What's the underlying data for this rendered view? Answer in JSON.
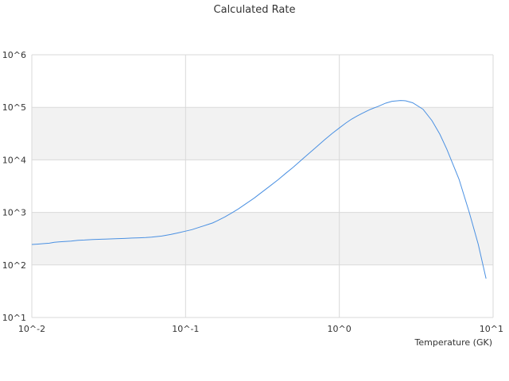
{
  "chart_data": {
    "type": "line",
    "title": "Calculated Rate",
    "xlabel": "Temperature (GK)",
    "ylabel": "",
    "x_scale": "log",
    "y_scale": "log",
    "xlim": [
      0.01,
      10
    ],
    "ylim": [
      10,
      1000000
    ],
    "x_ticks": [
      {
        "value": 0.01,
        "label": "10^-2"
      },
      {
        "value": 0.1,
        "label": "10^-1"
      },
      {
        "value": 1,
        "label": "10^0"
      },
      {
        "value": 10,
        "label": "10^1"
      }
    ],
    "y_ticks": [
      {
        "value": 10,
        "label": "10^1"
      },
      {
        "value": 100,
        "label": "10^2"
      },
      {
        "value": 1000,
        "label": "10^3"
      },
      {
        "value": 10000,
        "label": "10^4"
      },
      {
        "value": 100000,
        "label": "10^5"
      },
      {
        "value": 1000000,
        "label": "10^6"
      }
    ],
    "grid": true,
    "band_color": "#f2f2f2",
    "gridline_color": "#d9d9d9",
    "line_color": "#4a90e2",
    "series": [
      {
        "x": [
          0.01,
          0.011,
          0.012,
          0.013,
          0.014,
          0.015,
          0.016,
          0.018,
          0.02,
          0.022,
          0.025,
          0.03,
          0.035,
          0.04,
          0.045,
          0.05,
          0.055,
          0.06,
          0.07,
          0.08,
          0.09,
          0.1,
          0.11,
          0.12,
          0.13,
          0.14,
          0.15,
          0.16,
          0.18,
          0.2,
          0.22,
          0.25,
          0.28,
          0.3,
          0.35,
          0.4,
          0.45,
          0.5,
          0.6,
          0.7,
          0.8,
          0.9,
          1.0,
          1.1,
          1.2,
          1.3,
          1.4,
          1.5,
          1.6,
          1.8,
          2.0,
          2.2,
          2.5,
          2.7,
          3.0,
          3.5,
          4.0,
          4.5,
          5.0,
          6.0,
          7.0,
          8.0,
          9.0
        ],
        "y": [
          245,
          250,
          255,
          260,
          270,
          275,
          278,
          285,
          295,
          298,
          305,
          310,
          315,
          320,
          325,
          328,
          332,
          338,
          355,
          380,
          410,
          440,
          470,
          510,
          550,
          590,
          630,
          690,
          820,
          980,
          1160,
          1500,
          1880,
          2200,
          3100,
          4200,
          5600,
          7200,
          11500,
          17000,
          24000,
          32000,
          40500,
          50000,
          59500,
          68000,
          76000,
          84000,
          92000,
          105000,
          120000,
          130000,
          135000,
          133000,
          122000,
          92000,
          56000,
          31000,
          16000,
          4300,
          1000,
          250,
          55
        ]
      }
    ]
  }
}
